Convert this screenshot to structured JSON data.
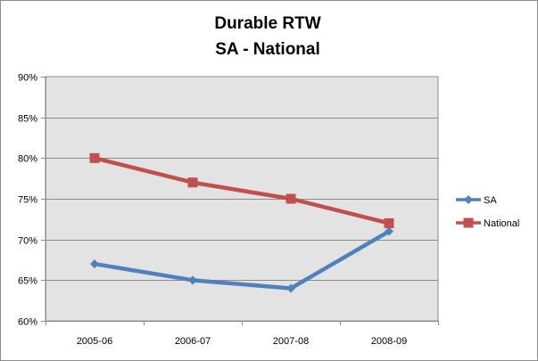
{
  "chart_data": {
    "type": "line",
    "title": [
      "Durable RTW",
      "SA - National"
    ],
    "categories": [
      "2005-06",
      "2006-07",
      "2007-08",
      "2008-09"
    ],
    "series": [
      {
        "name": "SA",
        "values": [
          0.67,
          0.65,
          0.64,
          0.71
        ],
        "color": "#4f81bd",
        "marker": "diamond"
      },
      {
        "name": "National",
        "values": [
          0.8,
          0.77,
          0.75,
          0.72
        ],
        "color": "#c0504d",
        "marker": "square"
      }
    ],
    "ylim": [
      0.6,
      0.9
    ],
    "yticks": [
      0.6,
      0.65,
      0.7,
      0.75,
      0.8,
      0.85,
      0.9
    ],
    "ytick_labels": [
      "60%",
      "65%",
      "70%",
      "75%",
      "80%",
      "85%",
      "90%"
    ],
    "grid": true,
    "plot_background": "#e3e3e3",
    "legend_position": "right"
  }
}
